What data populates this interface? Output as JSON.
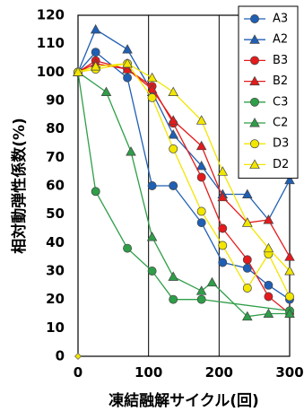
{
  "chart_data": {
    "type": "line",
    "xlabel": "凍結融解サイクル(回)",
    "ylabel": "相対動弾性係数(%)",
    "xlim": [
      0,
      300
    ],
    "ylim": [
      0,
      120
    ],
    "xticks": [
      "0",
      "100",
      "200",
      "300"
    ],
    "yticks": [
      "0",
      "10",
      "20",
      "30",
      "40",
      "50",
      "60",
      "70",
      "80",
      "90",
      "100",
      "110",
      "120"
    ],
    "grid": "vertical",
    "legend_position": "top-right",
    "series": [
      {
        "name": "A3",
        "color": "#1f5fb4",
        "marker": "circle",
        "x": [
          0,
          25,
          70,
          105,
          135,
          175,
          205,
          240,
          270,
          300
        ],
        "y": [
          100,
          107,
          98,
          60,
          60,
          47,
          33,
          31,
          25,
          20
        ]
      },
      {
        "name": "A2",
        "color": "#1f5fb4",
        "marker": "triangle",
        "x": [
          0,
          25,
          70,
          105,
          135,
          175,
          205,
          240,
          270,
          300
        ],
        "y": [
          100,
          115,
          108,
          93,
          78,
          67,
          57,
          57,
          48,
          62
        ]
      },
      {
        "name": "B3",
        "color": "#e41a1c",
        "marker": "circle",
        "x": [
          0,
          25,
          70,
          105,
          135,
          175,
          205,
          240,
          270,
          300
        ],
        "y": [
          100,
          104,
          101,
          95,
          82,
          63,
          45,
          34,
          21,
          15
        ]
      },
      {
        "name": "B2",
        "color": "#e41a1c",
        "marker": "triangle",
        "x": [
          0,
          25,
          70,
          105,
          135,
          175,
          205,
          240,
          270,
          300
        ],
        "y": [
          100,
          103,
          101,
          94,
          83,
          74,
          56,
          47,
          48,
          35
        ]
      },
      {
        "name": "C3",
        "color": "#2e9e48",
        "marker": "circle",
        "x": [
          0,
          25,
          70,
          105,
          135,
          175,
          300
        ],
        "y": [
          100,
          58,
          38,
          30,
          20,
          20,
          16
        ]
      },
      {
        "name": "C2",
        "color": "#2e9e48",
        "marker": "triangle",
        "x": [
          0,
          40,
          75,
          105,
          135,
          175,
          190,
          240,
          270,
          300
        ],
        "y": [
          100,
          93,
          72,
          42,
          28,
          23,
          26,
          14,
          15,
          15
        ]
      },
      {
        "name": "D3",
        "color": "#f2e600",
        "marker": "circle",
        "x": [
          0,
          25,
          70,
          105,
          135,
          175,
          205,
          240,
          270,
          300
        ],
        "y": [
          100,
          101,
          103,
          91,
          73,
          51,
          39,
          24,
          36,
          21
        ]
      },
      {
        "name": "D2",
        "color": "#f2e600",
        "marker": "triangle",
        "x": [
          0,
          25,
          70,
          105,
          135,
          175,
          205,
          240,
          270,
          300
        ],
        "y": [
          100,
          102,
          103,
          98,
          93,
          83,
          65,
          47,
          38,
          30
        ]
      }
    ],
    "annotations": [
      {
        "x": 0,
        "y": 0,
        "marker": "diamond",
        "color": "#f2e600"
      }
    ]
  }
}
